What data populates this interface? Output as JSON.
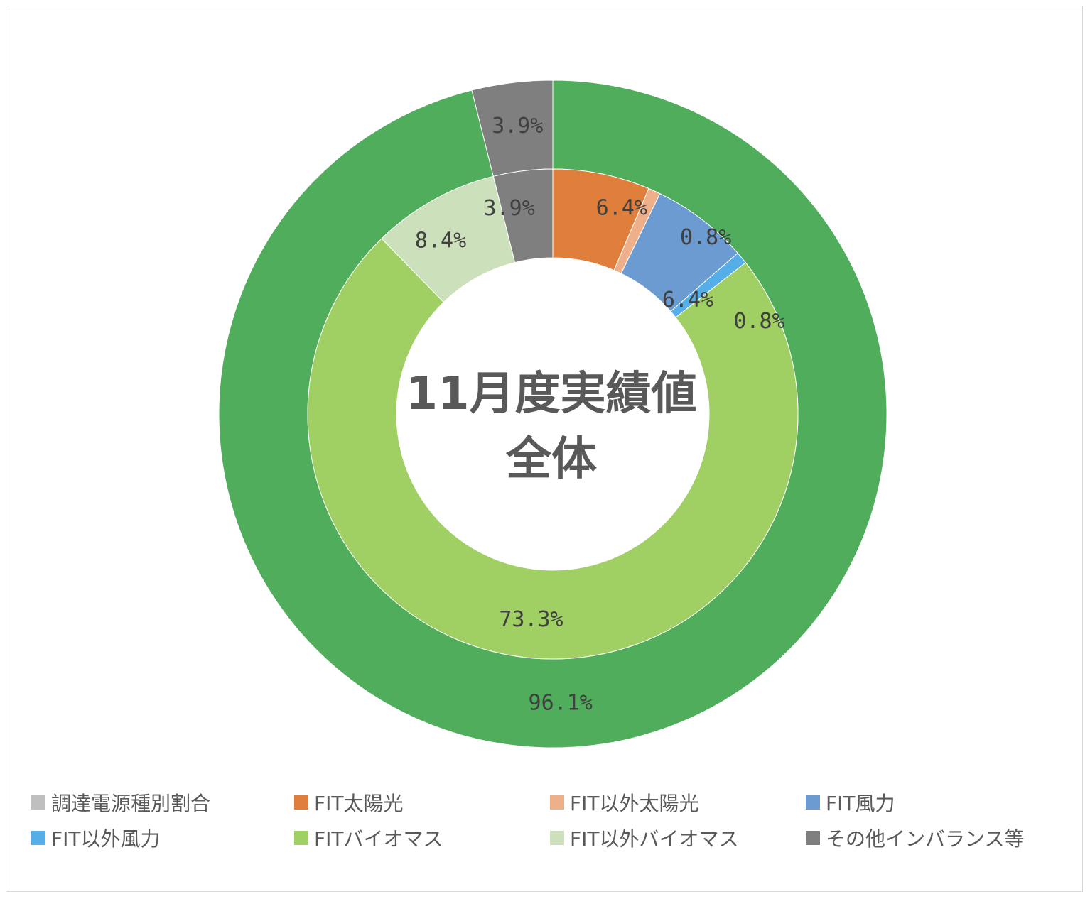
{
  "chart_data": {
    "type": "doughnut",
    "center_title": [
      "11月度実績値",
      "全体"
    ],
    "categories": [
      "調達電源種別割合",
      "FIT太陽光",
      "FIT以外太陽光",
      "FIT風力",
      "FIT以外風力",
      "FITバイオマス",
      "FIT以外バイオマス",
      "その他インバランス等"
    ],
    "colors": [
      "#bfbfbf",
      "#e07f3c",
      "#eeb08a",
      "#6b9bd1",
      "#56aee9",
      "#a0cf63",
      "#cde0bc",
      "#7f7f7f"
    ],
    "outer_ring": {
      "slices": [
        {
          "value": 96.1,
          "label": "96.1%",
          "color": "#4fad5b"
        },
        {
          "value": 3.9,
          "label": "3.9%",
          "color": "#7f7f7f"
        }
      ]
    },
    "inner_ring": {
      "slices": [
        {
          "category": "FIT太陽光",
          "value": 6.4,
          "label": "6.4%"
        },
        {
          "category": "FIT以外太陽光",
          "value": 0.8,
          "label": "0.8%"
        },
        {
          "category": "FIT風力",
          "value": 6.4,
          "label": "6.4%"
        },
        {
          "category": "FIT以外風力",
          "value": 0.8,
          "label": "0.8%"
        },
        {
          "category": "FITバイオマス",
          "value": 73.3,
          "label": "73.3%"
        },
        {
          "category": "FIT以外バイオマス",
          "value": 8.4,
          "label": "8.4%"
        },
        {
          "category": "その他インバランス等",
          "value": 3.9,
          "label": "3.9%"
        }
      ]
    },
    "legend_position": "bottom"
  }
}
